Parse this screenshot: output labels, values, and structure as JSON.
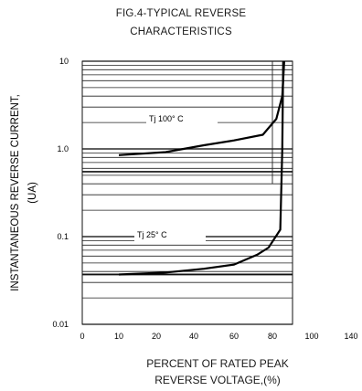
{
  "chart_data": {
    "type": "line",
    "title": "FIG.4-TYPICAL REVERSE",
    "subtitle": "CHARACTERISTICS",
    "xlabel": [
      "PERCENT OF RATED PEAK",
      "REVERSE VOLTAGE,(%)"
    ],
    "ylabel": [
      "INSTANTANEOUS REVERSE CURRENT,",
      "(UA)"
    ],
    "xlim": [
      0,
      140
    ],
    "ylim": [
      0.01,
      10
    ],
    "yscale": "log",
    "grid": true,
    "xticks": [
      "0",
      "10",
      "20",
      "40",
      "60",
      "80",
      "100",
      "140"
    ],
    "yticks": [
      "10",
      "1.0",
      "0.1",
      "0.01"
    ],
    "series": [
      {
        "name": "Tj 100° C",
        "x": [
          10,
          25,
          45,
          60,
          75,
          82,
          85,
          86
        ],
        "y": [
          0.85,
          0.92,
          1.1,
          1.25,
          1.45,
          2.2,
          4,
          10
        ]
      },
      {
        "name": "Tj 25° C",
        "x": [
          10,
          25,
          45,
          60,
          72,
          78,
          84,
          85,
          85.5
        ],
        "y": [
          0.037,
          0.039,
          0.043,
          0.048,
          0.062,
          0.075,
          0.12,
          1.0,
          10
        ]
      }
    ]
  }
}
